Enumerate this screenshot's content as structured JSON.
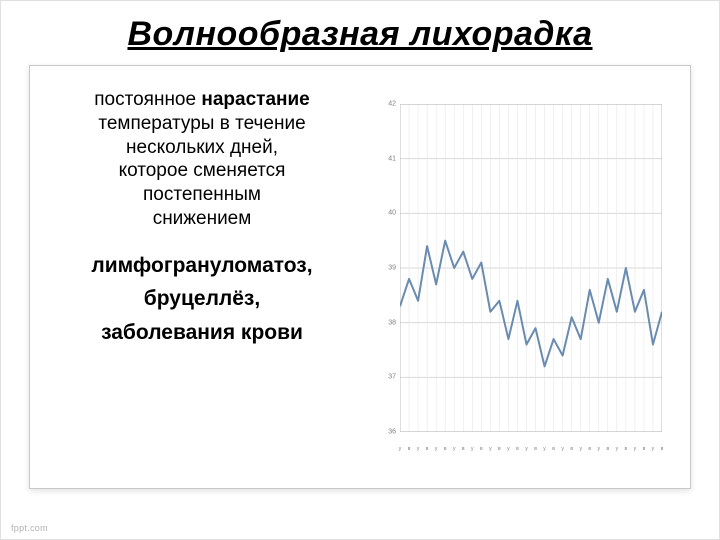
{
  "title": "Волнообразная лихорадка",
  "description": {
    "line1_light": "постоянное ",
    "line1_bold": "нарастание",
    "line2": "температуры в течение",
    "line3": "нескольких дней,",
    "line4": "которое сменяется",
    "line5": "постепенным",
    "line6": "снижением"
  },
  "diseases": {
    "d1": "лимфогрануломатоз,",
    "d2": "бруцеллёз,",
    "d3": "заболевания крови"
  },
  "chart": {
    "type": "line",
    "ylim": [
      36,
      42
    ],
    "ytick_step": 1,
    "yticks": [
      36,
      37,
      38,
      39,
      40,
      41,
      42
    ],
    "xlim": [
      1,
      30
    ],
    "xtick_chars": [
      "у",
      "в",
      "у",
      "в",
      "у",
      "в",
      "у",
      "в",
      "у",
      "в",
      "у",
      "в",
      "у",
      "в",
      "у",
      "в",
      "у",
      "в",
      "у",
      "в",
      "у",
      "в",
      "у",
      "в",
      "у",
      "в",
      "у",
      "в",
      "у",
      "в"
    ],
    "values": [
      38.3,
      38.8,
      38.4,
      39.4,
      38.7,
      39.5,
      39.0,
      39.3,
      38.8,
      39.1,
      38.2,
      38.4,
      37.7,
      38.4,
      37.6,
      37.9,
      37.2,
      37.7,
      37.4,
      38.1,
      37.7,
      38.6,
      38.0,
      38.8,
      38.2,
      39.0,
      38.2,
      38.6,
      37.6,
      38.2
    ],
    "line_color": "#6a8bb0",
    "line_width": 2,
    "grid_color": "#d9d9d9",
    "vgrid_color": "#e3e3e3",
    "background_color": "#ffffff",
    "axis_color": "#bfbfbf",
    "tick_label_color": "#808080",
    "tick_fontsize": 7
  },
  "footer": "fppt.com"
}
